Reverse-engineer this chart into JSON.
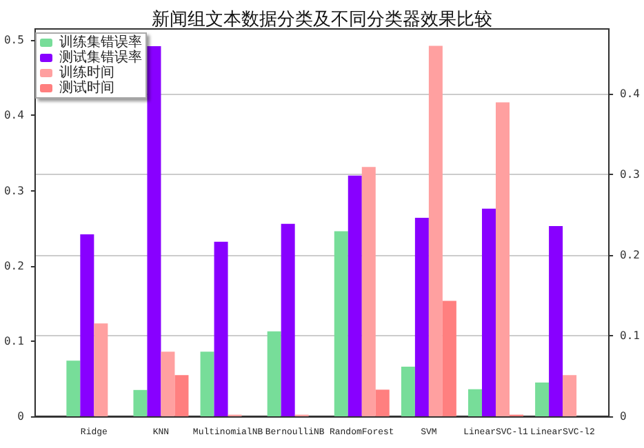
{
  "chart_data": {
    "type": "bar",
    "title": "新闻组文本数据分类及不同分类器效果比较",
    "categories": [
      "Ridge",
      "KNN",
      "MultinomialNB",
      "BernoulliNB",
      "RandomForest",
      "SVM",
      "LinearSVC-l1",
      "LinearSVC-l2"
    ],
    "series": [
      {
        "name": "训练集错误率",
        "color": "#77dd99",
        "values": [
          0.074,
          0.035,
          0.086,
          0.113,
          0.246,
          0.066,
          0.036,
          0.045
        ]
      },
      {
        "name": "测试集错误率",
        "color": "#8800ff",
        "values": [
          0.242,
          0.492,
          0.232,
          0.256,
          0.32,
          0.264,
          0.276,
          0.253
        ]
      },
      {
        "name": "训练时间",
        "color": "#ffa0a0",
        "axis": "y2",
        "values": [
          0.115,
          0.08,
          0.002,
          0.002,
          0.309,
          0.459,
          0.389,
          0.051
        ]
      },
      {
        "name": "测试时间",
        "color": "#ff7f7f",
        "axis": "y2",
        "values": [
          0,
          0.051,
          0,
          0,
          0.033,
          0.143,
          0.002,
          0
        ]
      }
    ],
    "ylim": [
      0,
      0.515
    ],
    "yticks": [
      0,
      0.1,
      0.2,
      0.3,
      0.4,
      0.5
    ],
    "y2lim": [
      0,
      0.48
    ],
    "y2ticks": [
      0,
      0.1,
      0.2,
      0.3,
      0.4
    ],
    "grid": "y2",
    "legend": "top left"
  }
}
